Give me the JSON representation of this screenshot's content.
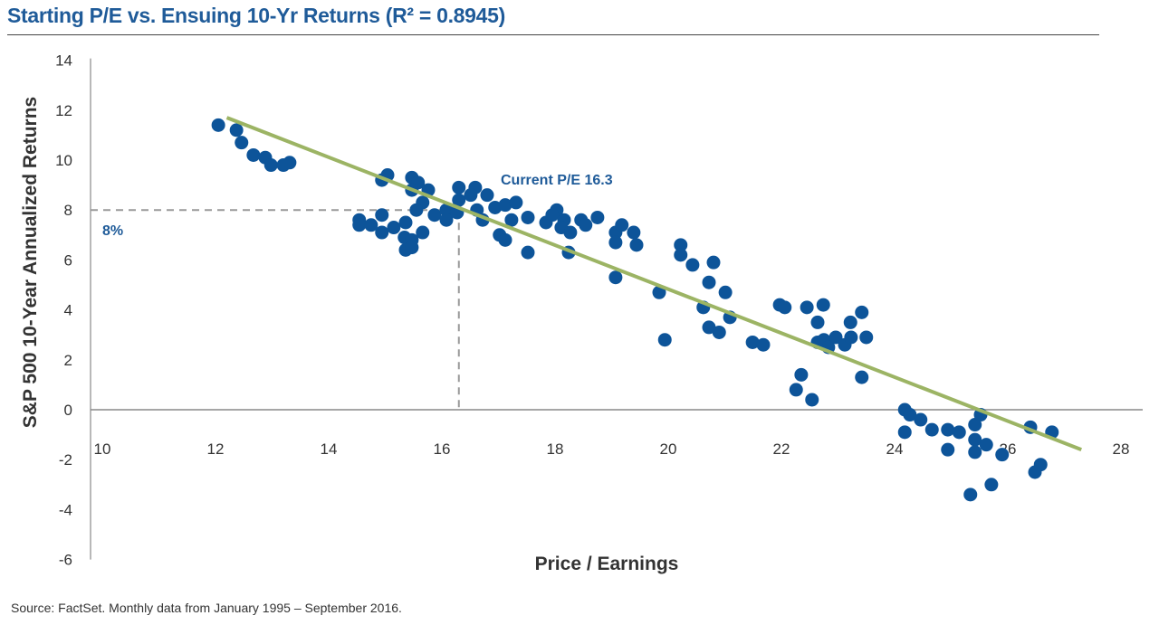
{
  "chart_data": {
    "type": "scatter",
    "title": "Starting P/E vs. Ensuing 10-Yr Returns (R² = 0.8945)",
    "xlabel": "Price / Earnings",
    "ylabel": "S&P 500 10-Year Annualized Returns",
    "xlim": [
      10,
      28
    ],
    "ylim": [
      -6,
      14
    ],
    "xticks": [
      10,
      12,
      14,
      16,
      18,
      20,
      22,
      24,
      26,
      28
    ],
    "yticks": [
      14,
      12,
      10,
      8,
      6,
      4,
      2,
      0,
      -2,
      -4,
      -6
    ],
    "grid": false,
    "colors": {
      "points": "#0d5499",
      "trendline": "#9cb464",
      "title": "#1f5b99",
      "reference": "#999999"
    },
    "trendline": {
      "x": [
        12.2,
        27.3
      ],
      "y": [
        11.7,
        -1.6
      ]
    },
    "reference": {
      "x": 16.3,
      "y": 8
    },
    "annotations": {
      "current_pe": "Current P/E 16.3",
      "return_label": "8%"
    },
    "points": [
      [
        12.05,
        11.4
      ],
      [
        12.37,
        11.2
      ],
      [
        12.46,
        10.7
      ],
      [
        12.67,
        10.2
      ],
      [
        12.88,
        10.1
      ],
      [
        12.98,
        9.8
      ],
      [
        13.2,
        9.8
      ],
      [
        13.31,
        9.9
      ],
      [
        14.94,
        9.2
      ],
      [
        15.04,
        9.4
      ],
      [
        15.47,
        9.3
      ],
      [
        15.58,
        9.1
      ],
      [
        15.47,
        8.8
      ],
      [
        15.76,
        8.8
      ],
      [
        15.66,
        8.3
      ],
      [
        15.55,
        8.0
      ],
      [
        14.54,
        7.6
      ],
      [
        14.54,
        7.4
      ],
      [
        14.75,
        7.4
      ],
      [
        14.94,
        7.8
      ],
      [
        14.94,
        7.1
      ],
      [
        15.15,
        7.3
      ],
      [
        15.36,
        7.5
      ],
      [
        15.34,
        6.9
      ],
      [
        15.47,
        6.8
      ],
      [
        15.36,
        6.4
      ],
      [
        15.47,
        6.5
      ],
      [
        15.66,
        7.1
      ],
      [
        15.87,
        7.8
      ],
      [
        16.08,
        8.0
      ],
      [
        16.08,
        7.6
      ],
      [
        16.27,
        7.9
      ],
      [
        16.3,
        8.9
      ],
      [
        16.59,
        8.9
      ],
      [
        16.3,
        8.4
      ],
      [
        16.51,
        8.6
      ],
      [
        16.8,
        8.6
      ],
      [
        16.62,
        8.0
      ],
      [
        16.72,
        7.6
      ],
      [
        16.94,
        8.1
      ],
      [
        17.12,
        8.2
      ],
      [
        17.31,
        8.3
      ],
      [
        17.23,
        7.6
      ],
      [
        17.52,
        7.7
      ],
      [
        17.02,
        7.0
      ],
      [
        17.12,
        6.8
      ],
      [
        17.52,
        6.3
      ],
      [
        17.84,
        7.5
      ],
      [
        18.03,
        8.0
      ],
      [
        17.95,
        7.8
      ],
      [
        18.16,
        7.6
      ],
      [
        18.11,
        7.3
      ],
      [
        18.27,
        7.1
      ],
      [
        18.24,
        6.3
      ],
      [
        18.46,
        7.6
      ],
      [
        18.54,
        7.4
      ],
      [
        18.75,
        7.7
      ],
      [
        19.07,
        7.1
      ],
      [
        19.18,
        7.4
      ],
      [
        19.07,
        6.7
      ],
      [
        19.07,
        5.3
      ],
      [
        19.39,
        7.1
      ],
      [
        19.44,
        6.6
      ],
      [
        20.22,
        6.6
      ],
      [
        20.22,
        6.2
      ],
      [
        20.43,
        5.8
      ],
      [
        20.8,
        5.9
      ],
      [
        19.84,
        4.7
      ],
      [
        20.72,
        5.1
      ],
      [
        21.01,
        4.7
      ],
      [
        20.62,
        4.1
      ],
      [
        21.09,
        3.7
      ],
      [
        20.72,
        3.3
      ],
      [
        20.9,
        3.1
      ],
      [
        19.94,
        2.8
      ],
      [
        21.49,
        2.7
      ],
      [
        21.68,
        2.6
      ],
      [
        21.97,
        4.2
      ],
      [
        22.06,
        4.1
      ],
      [
        22.45,
        4.1
      ],
      [
        22.74,
        4.2
      ],
      [
        22.64,
        3.5
      ],
      [
        23.42,
        3.9
      ],
      [
        23.22,
        3.5
      ],
      [
        22.64,
        2.7
      ],
      [
        22.75,
        2.8
      ],
      [
        22.83,
        2.5
      ],
      [
        22.96,
        2.9
      ],
      [
        23.12,
        2.6
      ],
      [
        23.23,
        2.9
      ],
      [
        23.5,
        2.9
      ],
      [
        23.42,
        1.3
      ],
      [
        22.35,
        1.4
      ],
      [
        22.26,
        0.8
      ],
      [
        22.54,
        0.4
      ],
      [
        24.18,
        0.0
      ],
      [
        24.27,
        -0.2
      ],
      [
        24.46,
        -0.4
      ],
      [
        24.18,
        -0.9
      ],
      [
        24.66,
        -0.8
      ],
      [
        24.94,
        -0.8
      ],
      [
        25.14,
        -0.9
      ],
      [
        24.94,
        -1.6
      ],
      [
        25.42,
        -0.6
      ],
      [
        25.52,
        -0.2
      ],
      [
        25.42,
        -1.2
      ],
      [
        25.62,
        -1.4
      ],
      [
        25.42,
        -1.7
      ],
      [
        25.9,
        -1.8
      ],
      [
        26.4,
        -0.7
      ],
      [
        26.78,
        -0.9
      ],
      [
        26.58,
        -2.2
      ],
      [
        26.48,
        -2.5
      ],
      [
        25.71,
        -3.0
      ],
      [
        25.34,
        -3.4
      ]
    ]
  },
  "source": "Source: FactSet. Monthly data from January 1995 – September 2016."
}
